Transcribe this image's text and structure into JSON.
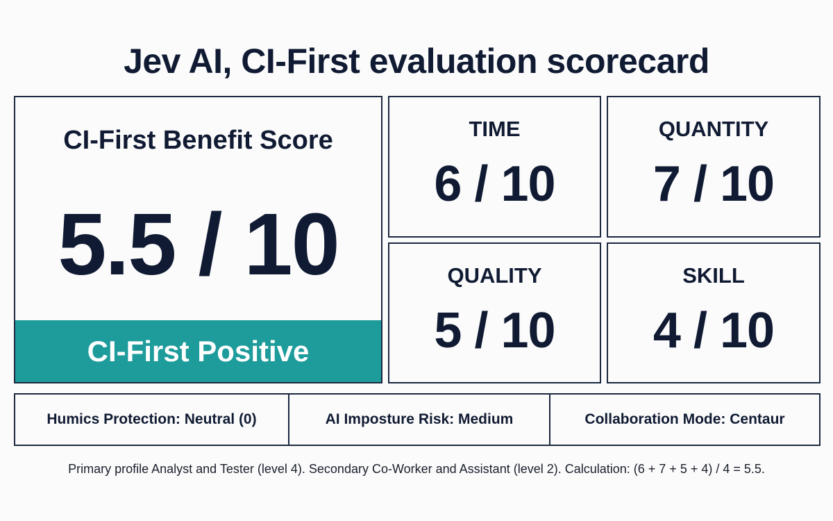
{
  "title": "Jev AI, CI-First evaluation scorecard",
  "overall": {
    "label": "CI-First Benefit Score",
    "value": "5.5 / 10",
    "verdict": "CI-First Positive",
    "verdict_color": "#1d9c9b"
  },
  "metrics": [
    {
      "label": "TIME",
      "value": "6 / 10"
    },
    {
      "label": "QUANTITY",
      "value": "7 / 10"
    },
    {
      "label": "QUALITY",
      "value": "5 / 10"
    },
    {
      "label": "SKILL",
      "value": "4 / 10"
    }
  ],
  "status": [
    "Humics Protection: Neutral (0)",
    "AI Imposture Risk: Medium",
    "Collaboration Mode: Centaur"
  ],
  "footnote": "Primary profile Analyst and Tester (level 4). Secondary Co-Worker and Assistant (level 2). Calculation: (6 + 7 + 5 + 4) / 4 = 5.5."
}
